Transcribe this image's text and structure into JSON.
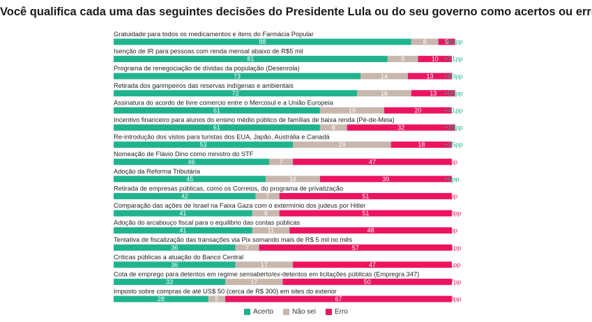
{
  "colors": {
    "acerto": "#1fb48e",
    "nao_sei": "#c8b7ad",
    "erro": "#ec1460",
    "diff_pos": "#1fb48e",
    "diff_neg": "#ec1460"
  },
  "chart_data": {
    "type": "bar",
    "stacked": true,
    "orientation": "horizontal",
    "title": "Você qualifica cada uma das seguintes decisões do Presidente Lula ou do seu governo como acertos ou erros?",
    "series": [
      {
        "name": "Acerto",
        "values": [
          88,
          81,
          73,
          72,
          61,
          61,
          53,
          46,
          45,
          42,
          41,
          41,
          36,
          36,
          33,
          28
        ]
      },
      {
        "name": "Não sei",
        "values": [
          8,
          9,
          14,
          16,
          19,
          8,
          29,
          7,
          16,
          7,
          8,
          11,
          7,
          17,
          17,
          5
        ]
      },
      {
        "name": "Erro",
        "values": [
          5,
          10,
          13,
          13,
          20,
          32,
          18,
          47,
          39,
          51,
          51,
          48,
          57,
          47,
          50,
          67
        ]
      }
    ],
    "categories": [
      "Gratuidade para todos os medicamentos e itens do Farmácia Popular",
      "Isenção de IR para pessoas com renda mensal abaixo de R$5 mil",
      "Programa de renegociação de dívidas da população (Desenrola)",
      "Retirada dos garimpeiros das reservas indígenas e ambientais",
      "Assinatura do acordo de livre comercio entre o Mercosul e a União Europeia",
      "Incentivo financeiro para alunos do ensino médio público de famílias de baixa renda (Pé-de-Meia)",
      "Re-introdução dos vistos para turistas dos EUA, Japão, Austrália e Canadá",
      "Nomeação de Flávio Dino como ministro do STF",
      "Adoção da Reforma Tributária",
      "Retirada de empresas públicas, como os Correios, do programa de privatização",
      "Comparação das ações de Israel na Faixa Gaza com o extermínio dos judeus por Hitler",
      "Adoção do arcabouço fiscal para o equilibrio das contas públicas",
      "Tentativa de fiscalização das transações via Pix somando mais de R$ 5 mil no mês",
      "Críticas públicas a atuação do Banco Central",
      "Cota de emprego para detentos em regime semiaberto/ex-detentos em licitações públicas (Empregra 347)",
      "Imposto sobre compras de até US$ 50 (cerca de R$ 300) em sites do exterior"
    ],
    "differences": [
      "+83pp",
      "+71pp",
      "+60pp",
      "+59pp",
      "+41pp",
      "+29pp",
      "+35pp",
      "-1pp",
      "+6pp",
      "-9pp",
      "-10pp",
      "-7pp",
      "-21pp",
      "-11pp",
      "-17pp",
      "-39pp"
    ],
    "legend": {
      "position": "bottom",
      "items": [
        "Acerto",
        "Não sei",
        "Erro"
      ]
    }
  }
}
